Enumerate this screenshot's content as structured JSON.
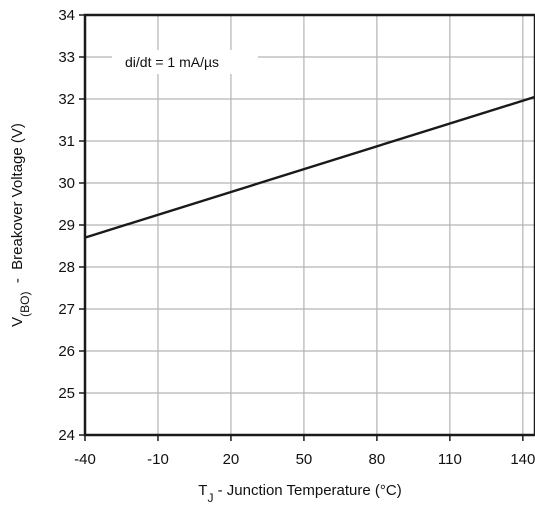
{
  "chart_data": {
    "type": "line",
    "title": "",
    "xlabel": {
      "main": "T",
      "subscript": "J",
      "rest": " - Junction Temperature (°C)"
    },
    "ylabel": {
      "main": "V",
      "subscript": "(BO)",
      "rest": "  -  Breakover Voltage (V)"
    },
    "xlim": [
      -40,
      145
    ],
    "ylim": [
      24,
      34
    ],
    "x_ticks": [
      -40,
      -10,
      20,
      50,
      80,
      110,
      140
    ],
    "y_ticks": [
      24,
      25,
      26,
      27,
      28,
      29,
      30,
      31,
      32,
      33,
      34
    ],
    "x_tick_labels": [
      "-40",
      "-10",
      "20",
      "50",
      "80",
      "110",
      "140"
    ],
    "y_tick_labels": [
      "24",
      "25",
      "26",
      "27",
      "28",
      "29",
      "30",
      "31",
      "32",
      "33",
      "34"
    ],
    "grid": true,
    "annotation": "di/dt = 1 mA/µs",
    "series": [
      {
        "x": [
          -40,
          145
        ],
        "y": [
          28.7,
          32.05
        ]
      }
    ],
    "colors": {
      "line": "#1a1a1a",
      "grid": "#b3b3b3",
      "frame": "#1a1a1a"
    }
  }
}
